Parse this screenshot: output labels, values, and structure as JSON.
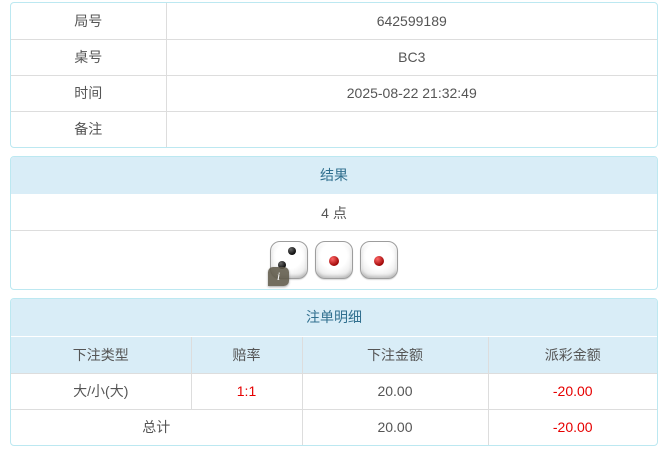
{
  "info_table": {
    "rows": [
      {
        "label": "局号",
        "value": "642599189"
      },
      {
        "label": "桌号",
        "value": "BC3"
      },
      {
        "label": "时间",
        "value": "2025-08-22 21:32:49"
      },
      {
        "label": "备注",
        "value": ""
      }
    ]
  },
  "result_panel": {
    "title": "结果",
    "points": "4 点",
    "dice": [
      {
        "value": 2,
        "pip_color": "black"
      },
      {
        "value": 1,
        "pip_color": "red"
      },
      {
        "value": 1,
        "pip_color": "red"
      }
    ],
    "info_icon_glyph": "i"
  },
  "bets_panel": {
    "title": "注单明细",
    "columns": [
      "下注类型",
      "赔率",
      "下注金额",
      "派彩金额"
    ],
    "rows": [
      {
        "type": "大/小(大)",
        "odds": "1:1",
        "amount": "20.00",
        "payout": "-20.00"
      }
    ],
    "total": {
      "label": "总计",
      "amount": "20.00",
      "payout": "-20.00"
    }
  },
  "colors": {
    "panel_border": "#bce8f1",
    "heading_bg": "#d9edf7",
    "heading_text": "#31708f",
    "cell_border": "#dddddd",
    "body_text": "#555555",
    "negative_red": "#e60000"
  }
}
